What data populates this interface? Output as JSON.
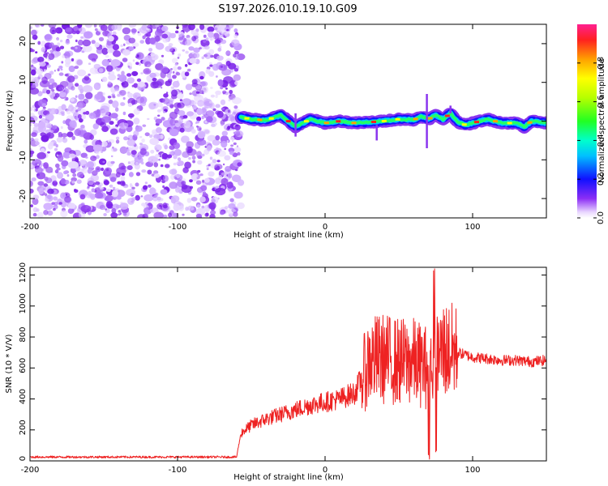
{
  "title": "S197.2026.010.19.10.G09",
  "chart_data": [
    {
      "type": "heatmap",
      "name": "spectrogram",
      "xlabel": "Height of straight line (km)",
      "ylabel": "Frequency (Hz)",
      "xlim": [
        -200,
        150
      ],
      "ylim": [
        -25,
        25
      ],
      "xticks": [
        -200,
        -100,
        0,
        100
      ],
      "yticks": [
        -20,
        -10,
        0,
        10,
        20
      ],
      "colorbar": {
        "label": "Normalized spectral amplitude",
        "range": [
          0,
          1
        ],
        "ticks": [
          0.0,
          0.2,
          0.4,
          0.6,
          0.8
        ]
      },
      "signal_start_height_km": -57,
      "ridge_frequency_hz": [
        [
          -57,
          1.0
        ],
        [
          -50,
          0.5
        ],
        [
          -40,
          0.2
        ],
        [
          -30,
          1.5
        ],
        [
          -20,
          -1.5
        ],
        [
          -10,
          0.5
        ],
        [
          0,
          -0.5
        ],
        [
          10,
          0.0
        ],
        [
          20,
          -0.5
        ],
        [
          30,
          -0.3
        ],
        [
          40,
          0.0
        ],
        [
          50,
          0.5
        ],
        [
          60,
          0.3
        ],
        [
          65,
          1.2
        ],
        [
          70,
          0.5
        ],
        [
          75,
          1.5
        ],
        [
          80,
          0.5
        ],
        [
          85,
          2.0
        ],
        [
          90,
          -0.2
        ],
        [
          95,
          -1.0
        ],
        [
          100,
          -0.5
        ],
        [
          110,
          0.5
        ],
        [
          120,
          -0.5
        ],
        [
          130,
          -0.5
        ],
        [
          135,
          -1.5
        ],
        [
          140,
          0.0
        ],
        [
          150,
          -0.5
        ]
      ]
    },
    {
      "type": "line",
      "name": "snr",
      "color": "#ee2222",
      "xlabel": "Height of straight line (km)",
      "ylabel": "SNR (10 * V/V)",
      "xlim": [
        -200,
        150
      ],
      "ylim": [
        0,
        1250
      ],
      "xticks": [
        -200,
        -100,
        0,
        100
      ],
      "yticks": [
        0,
        200,
        400,
        600,
        800,
        1000,
        1200
      ],
      "envelope": {
        "x": [
          -200,
          -60,
          -57,
          -50,
          -40,
          -30,
          -20,
          -10,
          0,
          10,
          20,
          25,
          30,
          40,
          50,
          60,
          70,
          75,
          80,
          90,
          100,
          110,
          120,
          130,
          140,
          150
        ],
        "y": [
          25,
          25,
          180,
          230,
          270,
          300,
          330,
          360,
          380,
          400,
          440,
          530,
          650,
          660,
          640,
          640,
          600,
          650,
          720,
          700,
          670,
          660,
          650,
          650,
          640,
          650
        ]
      }
    }
  ]
}
